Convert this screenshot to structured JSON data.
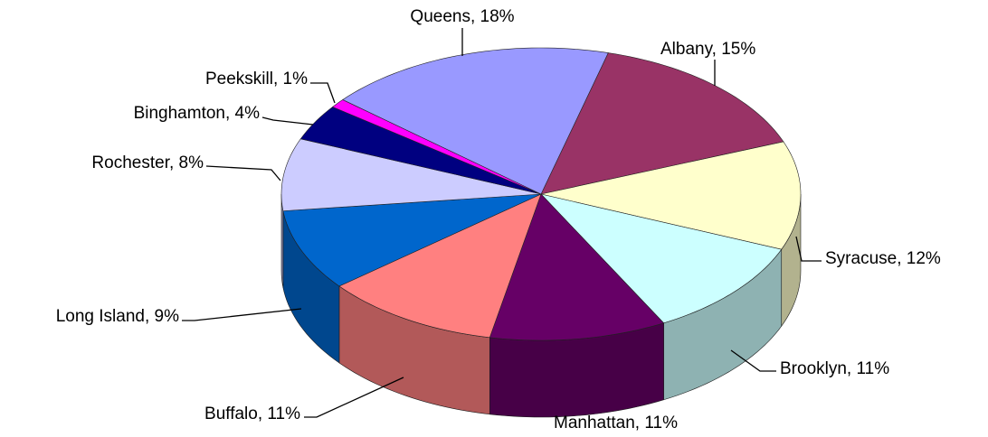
{
  "chart_data": {
    "type": "pie",
    "value_labels": [
      "Albany, 15%",
      "Syracuse, 12%",
      "Brooklyn, 11%",
      "Manhattan, 11%",
      "Buffalo, 11%",
      "Long Island, 9%",
      "Rochester, 8%",
      "Binghamton, 4%",
      "Peekskill, 1%",
      "Queens, 18%"
    ],
    "values": [
      15,
      12,
      11,
      11,
      11,
      9,
      8,
      4,
      1,
      18
    ],
    "colors": [
      "#993366",
      "#ffffcc",
      "#ccffff",
      "#660066",
      "#ff8080",
      "#0066cc",
      "#ccccff",
      "#000080",
      "#ff00ff",
      "#9999ff"
    ]
  }
}
